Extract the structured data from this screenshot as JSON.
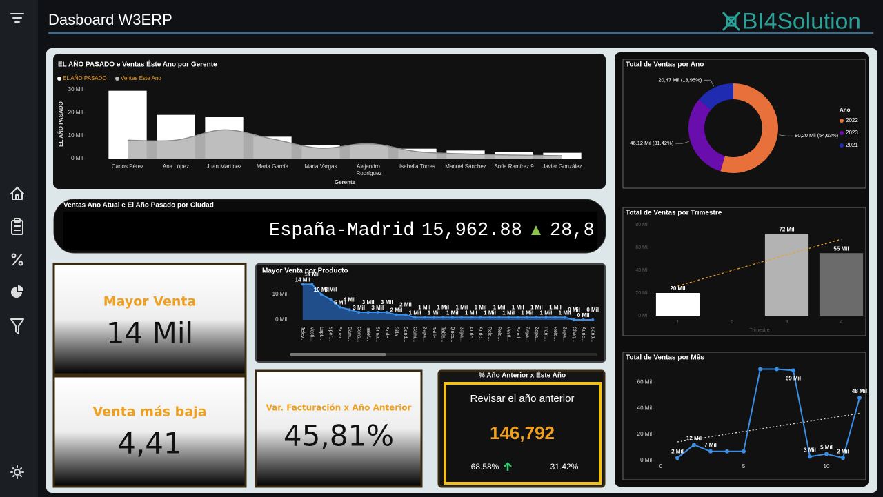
{
  "header": {
    "title": "Dasboard W3ERP",
    "logo": "BI4Solution"
  },
  "chart_data": [
    {
      "type": "bar",
      "title": "EL AÑO PASADO e Ventas Éste Ano por Gerente",
      "xlabel": "Gerente",
      "ylabel": "EL AÑO PASADO",
      "categories": [
        "Carlos Pérez",
        "Ana López",
        "Juan Martínez",
        "Maria García",
        "Maria Vargas",
        "Alejandro Rodríguez",
        "Isabella Torres",
        "Manuel Sánchez",
        "Sofia Ramírez 9",
        "Javier González"
      ],
      "series": [
        {
          "name": "EL AÑO PASADO",
          "color": "#ffffff",
          "type": "bar",
          "values": [
            29500,
            19000,
            18000,
            9500,
            6000,
            6000,
            4300,
            3500,
            2800,
            2500
          ]
        },
        {
          "name": "Ventas Éste Ano",
          "color": "#b9b9b9",
          "type": "area",
          "values": [
            8000,
            8000,
            12500,
            8500,
            4500,
            6500,
            3000,
            2000,
            1500,
            1200
          ]
        }
      ],
      "ylim": [
        0,
        30000
      ],
      "yticks": [
        {
          "value": 0,
          "label": "0 Mil"
        },
        {
          "value": 10000,
          "label": "10 Mil"
        },
        {
          "value": 20000,
          "label": "20 Mil"
        },
        {
          "value": 30000,
          "label": "30 Mil"
        }
      ],
      "legend": "top-left"
    },
    {
      "type": "area",
      "title": "Mayor Venta por Producto",
      "color": "#3a8ee6",
      "categories": [
        "Telev...",
        "Vesti...",
        "Lapt...",
        "Sper...",
        "Smar...",
        "Cám...",
        "Cons...",
        "Telef...",
        "Smar...",
        "Sude...",
        "Silla",
        "Sand...",
        "Cami...",
        "Zapa...",
        "Table...",
        "Table...",
        "Ques...",
        "Zapa...",
        "Auric...",
        "Auric...",
        "Relo...",
        "Relo...",
        "Vesti...",
        "Sand...",
        "Zapa...",
        "Zapa...",
        "Pant...",
        "Relo...",
        "Zapa...",
        "Chaq...",
        "Auric...",
        "Sand..."
      ],
      "values": [
        14000,
        14000,
        10000,
        8000,
        5000,
        4000,
        3000,
        3000,
        3000,
        3000,
        2000,
        2000,
        1000,
        1000,
        1000,
        1000,
        1000,
        1000,
        1000,
        1000,
        1000,
        1000,
        1000,
        1000,
        1000,
        1000,
        1000,
        1000,
        1000,
        0,
        0,
        0
      ],
      "value_labels": [
        "14 Mil",
        "14 Mil",
        "10 Mil",
        "8 Mil",
        "5 Mil",
        "4 Mil",
        "3 Mil",
        "3 Mil",
        "3 Mil",
        "3 Mil",
        "2 Mil",
        "2 Mil",
        "1 Mil",
        "1 Mil",
        "1 Mil",
        "1 Mil",
        "1 Mil",
        "1 Mil",
        "1 Mil",
        "1 Mil",
        "1 Mil",
        "1 Mil",
        "1 Mil",
        "1 Mil",
        "1 Mil",
        "1 Mil",
        "1 Mil",
        "1 Mil",
        "1 Mil",
        "0 Mil",
        "0 Mil",
        "0 Mil"
      ],
      "ylim": [
        0,
        16000
      ],
      "yticks": [
        {
          "value": 0,
          "label": "0 Mil"
        },
        {
          "value": 10000,
          "label": "10 Mil"
        }
      ]
    },
    {
      "type": "donut",
      "title": "Total de Ventas por Ano",
      "legend_title": "Ano",
      "legend": "right",
      "categories": [
        "2022",
        "2023",
        "2021"
      ],
      "values": [
        80.2,
        46.12,
        20.47
      ],
      "value_labels": [
        "80,20 Mil (54,63%)",
        "46,12 Mil (31,42%)",
        "20,47 Mil (13,95%)"
      ],
      "colors": [
        "#e8703a",
        "#6a0dad",
        "#1f2bb0"
      ]
    },
    {
      "type": "bar",
      "title": "Total de Ventas por Trimestre",
      "xlabel": "Trimestre",
      "categories": [
        "1",
        "2",
        "3",
        "4"
      ],
      "values": [
        20000,
        null,
        72000,
        55000
      ],
      "value_labels": [
        "20 Mil",
        null,
        "72 Mil",
        "55 Mil"
      ],
      "colors": [
        "#ffffff",
        null,
        "#b3b3b3",
        "#6b6b6b"
      ],
      "ylim": [
        0,
        80000
      ],
      "yticks": [
        {
          "value": 0,
          "label": "0 Mil"
        },
        {
          "value": 20000,
          "label": "20 Mil"
        },
        {
          "value": 40000,
          "label": "40 Mil"
        },
        {
          "value": 60000,
          "label": "60 Mil"
        },
        {
          "value": 80000,
          "label": "80 Mil"
        }
      ],
      "trendline": {
        "color": "#f0a020",
        "dash": true
      }
    },
    {
      "type": "line",
      "title": "Total de Ventas por Mês",
      "color": "#3a8ee6",
      "x": [
        1,
        2,
        3,
        4,
        5,
        6,
        7,
        8,
        9,
        10,
        11,
        12
      ],
      "values": [
        2000,
        12000,
        7000,
        7000,
        7000,
        70000,
        70000,
        69000,
        3000,
        5000,
        2000,
        48000
      ],
      "value_labels": [
        "2 Mil",
        "12 Mil",
        "7 Mil",
        null,
        null,
        null,
        null,
        "69 Mil",
        "3 Mil",
        "5 Mil",
        "2 Mil",
        "48 Mil"
      ],
      "xlim": [
        0,
        12.5
      ],
      "xticks": [
        0,
        5,
        10
      ],
      "ylim": [
        0,
        75000
      ],
      "yticks": [
        {
          "value": 0,
          "label": "0 Mil"
        },
        {
          "value": 20000,
          "label": "20 Mil"
        },
        {
          "value": 40000,
          "label": "40 Mil"
        },
        {
          "value": 60000,
          "label": "60 Mil"
        }
      ],
      "trendline": {
        "color": "#dddddd",
        "dash": true
      }
    }
  ],
  "ticker": {
    "title": "Ventas Ano Atual e El Año Pasado por Ciudad",
    "city": "España-Madrid",
    "value": "15,962.88",
    "change": "28,8"
  },
  "kpis": [
    {
      "title": "Mayor Venta",
      "value": "14 Mil"
    },
    {
      "title": "Venta más baja",
      "value": "4,41"
    },
    {
      "title": "Var. Facturación x Año Anterior",
      "value": "45,81%"
    }
  ],
  "comparison": {
    "title": "% Año Anterior x Éste Año",
    "subtitle": "Revisar el año anterior",
    "value": "146,792",
    "previous": "68.58%",
    "current": "31.42%"
  }
}
